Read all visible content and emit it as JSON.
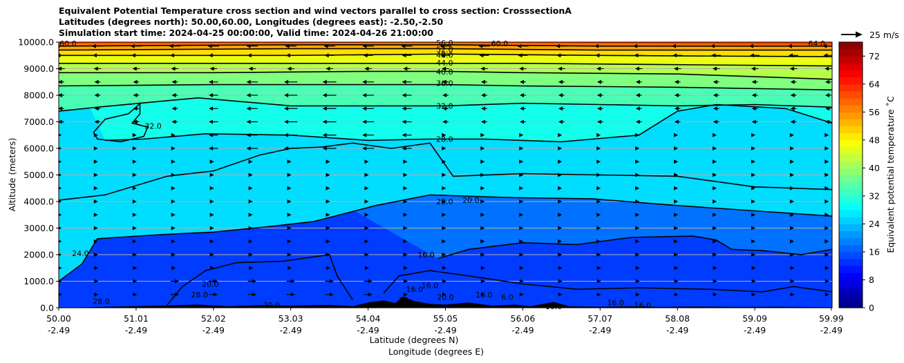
{
  "title_lines": [
    "Equivalent Potential Temperature cross section and wind vectors parallel to cross section: CrosssectionA",
    "Latitudes (degrees north): 50.00,60.00, Longitudes (degrees east): -2.50,-2.50",
    "Simulation start time: 2024-04-25 00:00:00, Valid time: 2024-04-26 21:00:00"
  ],
  "quiver_key_label": "25 m/s",
  "chart_data": {
    "type": "heatmap",
    "title": "Equivalent Potential Temperature cross section and wind vectors parallel to cross section: CrosssectionA",
    "xlabel_lat": "Latitude (degrees N)",
    "xlabel_lon": "Longitude (degrees E)",
    "ylabel": "Altitude (meters)",
    "colorbar_label": "Equivalent potential temperature $^\\circ$C",
    "colorbar_label_text": "Equivalent potential temperature ˚C",
    "xlim": [
      0,
      10
    ],
    "ylim": [
      0,
      10000
    ],
    "x_ticks": [
      {
        "pos": 0,
        "lat": "50.00",
        "lon": "-2.49"
      },
      {
        "pos": 1,
        "lat": "51.01",
        "lon": "-2.49"
      },
      {
        "pos": 2,
        "lat": "52.02",
        "lon": "-2.49"
      },
      {
        "pos": 3,
        "lat": "53.03",
        "lon": "-2.49"
      },
      {
        "pos": 4,
        "lat": "54.04",
        "lon": "-2.49"
      },
      {
        "pos": 5,
        "lat": "55.05",
        "lon": "-2.49"
      },
      {
        "pos": 6,
        "lat": "56.06",
        "lon": "-2.49"
      },
      {
        "pos": 7,
        "lat": "57.07",
        "lon": "-2.49"
      },
      {
        "pos": 8,
        "lat": "58.08",
        "lon": "-2.49"
      },
      {
        "pos": 9,
        "lat": "59.09",
        "lon": "-2.49"
      },
      {
        "pos": 9.99,
        "lat": "59.99",
        "lon": "-2.49"
      }
    ],
    "y_ticks": [
      {
        "value": 0,
        "label": "0.0"
      },
      {
        "value": 1000,
        "label": "1000.0"
      },
      {
        "value": 2000,
        "label": "2000.0"
      },
      {
        "value": 3000,
        "label": "3000.0"
      },
      {
        "value": 4000,
        "label": "4000.0"
      },
      {
        "value": 5000,
        "label": "5000.0"
      },
      {
        "value": 6000,
        "label": "6000.0"
      },
      {
        "value": 7000,
        "label": "7000.0"
      },
      {
        "value": 8000,
        "label": "8000.0"
      },
      {
        "value": 9000,
        "label": "9000.0"
      },
      {
        "value": 10000,
        "label": "10000.0"
      }
    ],
    "colorbar": {
      "min": 0,
      "max": 76,
      "step": 2,
      "ticks": [
        0,
        8,
        16,
        24,
        32,
        40,
        48,
        56,
        64,
        72
      ]
    },
    "contours": [
      {
        "level": 16,
        "points": [
          [
            4.9,
            1850
          ],
          [
            5.3,
            2200
          ],
          [
            6,
            2450
          ],
          [
            6.7,
            2380
          ],
          [
            7.4,
            2650
          ],
          [
            8.2,
            2700
          ],
          [
            8.5,
            2550
          ],
          [
            8.7,
            2200
          ],
          [
            9.1,
            2150
          ],
          [
            9.6,
            2000
          ],
          [
            10,
            2200
          ]
        ]
      },
      {
        "level": 20,
        "points": [
          [
            0,
            4050
          ],
          [
            0.6,
            4250
          ],
          [
            1.4,
            4950
          ],
          [
            2,
            5150
          ],
          [
            2.6,
            5750
          ],
          [
            3,
            6000
          ],
          [
            3.4,
            6050
          ],
          [
            3.8,
            6200
          ],
          [
            4.3,
            6000
          ],
          [
            4.8,
            6200
          ],
          [
            5.1,
            4950
          ],
          [
            6,
            5050
          ],
          [
            7,
            5000
          ],
          [
            8,
            4950
          ],
          [
            9,
            4550
          ],
          [
            10,
            4450
          ]
        ]
      },
      {
        "level": 24,
        "points": [
          [
            0,
            1000
          ],
          [
            0.3,
            1650
          ],
          [
            0.5,
            2600
          ],
          [
            1.3,
            2750
          ],
          [
            2,
            2850
          ],
          [
            2.7,
            3050
          ],
          [
            3.3,
            3250
          ],
          [
            4.1,
            3850
          ],
          [
            4.8,
            4250
          ],
          [
            5.8,
            4150
          ],
          [
            6.9,
            4100
          ],
          [
            8,
            3850
          ],
          [
            9,
            3650
          ],
          [
            10,
            3450
          ]
        ]
      },
      {
        "level": 28,
        "points": [
          [
            0.6,
            6300
          ],
          [
            1.1,
            6350
          ],
          [
            1.9,
            6550
          ],
          [
            3,
            6500
          ],
          [
            4,
            6300
          ],
          [
            4.8,
            6350
          ],
          [
            5.5,
            6350
          ],
          [
            6.5,
            6250
          ],
          [
            7.5,
            6500
          ],
          [
            8,
            7400
          ],
          [
            8.5,
            7650
          ],
          [
            9.4,
            7500
          ],
          [
            10,
            6950
          ]
        ]
      },
      {
        "level": 32,
        "points": [
          [
            0,
            7400
          ],
          [
            0.5,
            7550
          ],
          [
            1.8,
            7900
          ],
          [
            3,
            7600
          ],
          [
            4,
            7600
          ],
          [
            5,
            7600
          ],
          [
            6,
            7700
          ],
          [
            7,
            7650
          ],
          [
            8,
            7600
          ],
          [
            9,
            7650
          ],
          [
            10,
            7550
          ]
        ]
      },
      {
        "level": 36,
        "points": [
          [
            0,
            8350
          ],
          [
            2,
            8400
          ],
          [
            4,
            8400
          ],
          [
            5,
            8400
          ],
          [
            6,
            8350
          ],
          [
            8,
            8300
          ],
          [
            10,
            8200
          ]
        ]
      },
      {
        "level": 40,
        "points": [
          [
            0,
            8850
          ],
          [
            2,
            8850
          ],
          [
            4,
            8900
          ],
          [
            5,
            8900
          ],
          [
            6,
            8850
          ],
          [
            8,
            8800
          ],
          [
            10,
            8600
          ]
        ]
      },
      {
        "level": 44,
        "points": [
          [
            0,
            9200
          ],
          [
            2,
            9200
          ],
          [
            4,
            9200
          ],
          [
            5,
            9200
          ],
          [
            6,
            9200
          ],
          [
            8,
            9150
          ],
          [
            10,
            9100
          ]
        ]
      },
      {
        "level": 48,
        "points": [
          [
            0,
            9500
          ],
          [
            3,
            9500
          ],
          [
            5,
            9550
          ],
          [
            7,
            9500
          ],
          [
            10,
            9450
          ]
        ]
      },
      {
        "level": 52,
        "points": [
          [
            0,
            9700
          ],
          [
            3,
            9750
          ],
          [
            5,
            9750
          ],
          [
            7,
            9700
          ],
          [
            10,
            9700
          ]
        ]
      },
      {
        "level": 56,
        "points": [
          [
            0,
            9850
          ],
          [
            3,
            9900
          ],
          [
            5,
            9900
          ],
          [
            7,
            9850
          ],
          [
            10,
            9850
          ]
        ]
      }
    ],
    "contour_labels": [
      {
        "text": "60.0",
        "x": 0.12,
        "y": 9950
      },
      {
        "text": "56.0",
        "x": 4.99,
        "y": 9980
      },
      {
        "text": "52.0",
        "x": 4.99,
        "y": 9730
      },
      {
        "text": "48.0",
        "x": 4.99,
        "y": 9520
      },
      {
        "text": "44.0",
        "x": 4.99,
        "y": 9220
      },
      {
        "text": "40.0",
        "x": 4.99,
        "y": 8880
      },
      {
        "text": "36.0",
        "x": 4.99,
        "y": 8450
      },
      {
        "text": "32.0",
        "x": 4.99,
        "y": 7600
      },
      {
        "text": "28.0",
        "x": 4.99,
        "y": 6350
      },
      {
        "text": "32.0",
        "x": 1.22,
        "y": 6850
      },
      {
        "text": "20.0",
        "x": 4.99,
        "y": 4000
      },
      {
        "text": "20.0",
        "x": 5.33,
        "y": 4050
      },
      {
        "text": "60.0",
        "x": 5.7,
        "y": 9950
      },
      {
        "text": "64.0",
        "x": 9.8,
        "y": 9950
      },
      {
        "text": "24.0",
        "x": 0.28,
        "y": 2050
      },
      {
        "text": "28.0",
        "x": 0.55,
        "y": 250
      },
      {
        "text": "20.0",
        "x": 1.96,
        "y": 900
      },
      {
        "text": "28.0",
        "x": 1.82,
        "y": 500
      },
      {
        "text": "20.0",
        "x": 2.75,
        "y": 100
      },
      {
        "text": "16.0",
        "x": 4.75,
        "y": 2000
      },
      {
        "text": "16.0",
        "x": 4.8,
        "y": 850
      },
      {
        "text": "16.0",
        "x": 4.6,
        "y": 700
      },
      {
        "text": "16",
        "x": 4.45,
        "y": 300
      },
      {
        "text": "16.0",
        "x": 5.5,
        "y": 500
      },
      {
        "text": "16.0",
        "x": 6.4,
        "y": 50
      },
      {
        "text": "16.0",
        "x": 7.2,
        "y": 200
      },
      {
        "text": "16.0",
        "x": 7.55,
        "y": 100
      },
      {
        "text": "6.0",
        "x": 5.8,
        "y": 400
      },
      {
        "text": "20.0",
        "x": 5.0,
        "y": 400
      }
    ]
  }
}
